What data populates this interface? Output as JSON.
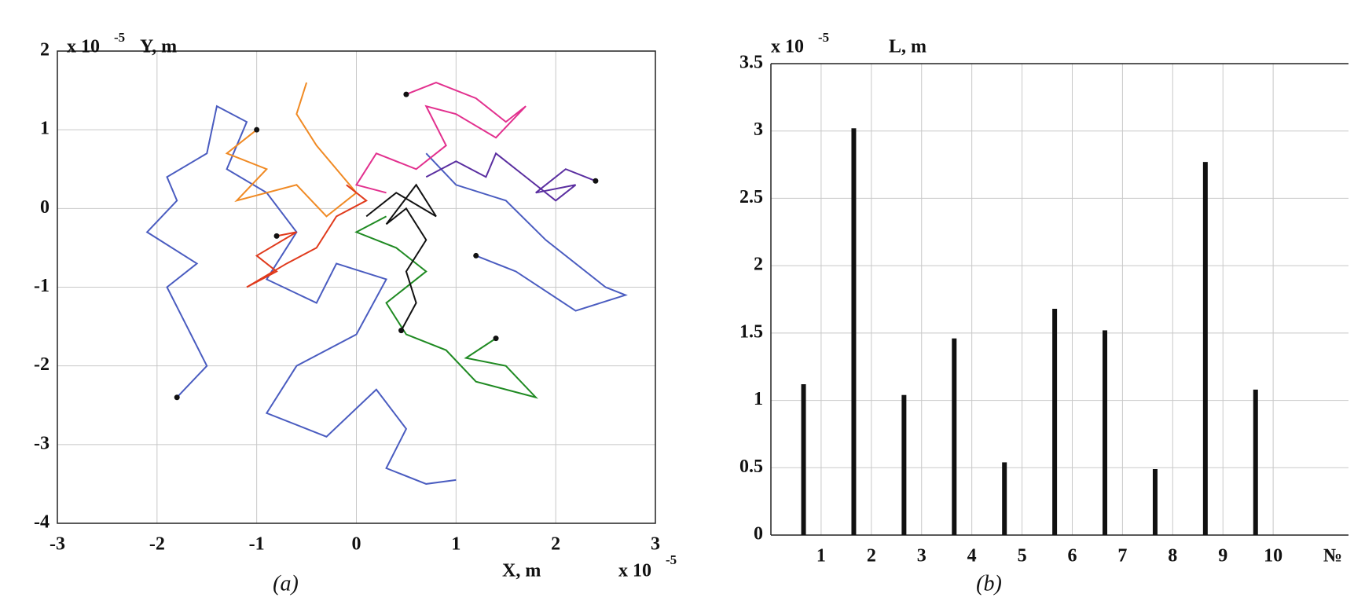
{
  "chart_data": [
    {
      "type": "line",
      "x_label": "X, m",
      "y_label": "Y, m",
      "multiplier": {
        "base": "x 10",
        "exponent": "-5"
      },
      "caption": "(a)",
      "xlim": [
        -3,
        3
      ],
      "ylim": [
        -4,
        2
      ],
      "xticks": [
        -3,
        -2,
        -1,
        0,
        1,
        2,
        3
      ],
      "yticks": [
        -4,
        -3,
        -2,
        -1,
        0,
        1,
        2
      ],
      "grid": true,
      "start_marker_color": "#111",
      "series": [
        {
          "color": "#4a5cc0",
          "x": [
            -1.8,
            -1.5,
            -1.7,
            -1.9,
            -1.6,
            -2.1,
            -1.8,
            -1.9,
            -1.5,
            -1.4,
            -1.1,
            -1.3,
            -0.9,
            -0.6,
            -0.9,
            -0.4,
            -0.2,
            0.3,
            0.0,
            -0.6,
            -0.9,
            -0.3,
            0.2,
            0.5,
            0.3,
            0.7,
            1.0
          ],
          "values": [
            -2.4,
            -2.0,
            -1.5,
            -1.0,
            -0.7,
            -0.3,
            0.1,
            0.4,
            0.7,
            1.3,
            1.1,
            0.5,
            0.2,
            -0.3,
            -0.9,
            -1.2,
            -0.7,
            -0.9,
            -1.6,
            -2.0,
            -2.6,
            -2.9,
            -2.3,
            -2.8,
            -3.3,
            -3.5,
            -3.45
          ]
        },
        {
          "color": "#4a5cc0",
          "x": [
            1.2,
            1.6,
            2.2,
            2.7,
            2.5,
            1.9,
            1.5,
            1.0,
            0.7
          ],
          "values": [
            -0.6,
            -0.8,
            -1.3,
            -1.1,
            -1.0,
            -0.4,
            0.1,
            0.3,
            0.7
          ]
        },
        {
          "color": "#f08a24",
          "x": [
            -1.0,
            -1.3,
            -0.9,
            -1.2,
            -0.6,
            -0.3,
            0.0,
            -0.4,
            -0.6,
            -0.5
          ],
          "values": [
            1.0,
            0.7,
            0.5,
            0.1,
            0.3,
            -0.1,
            0.2,
            0.8,
            1.2,
            1.6
          ]
        },
        {
          "color": "#e03a1c",
          "x": [
            -0.8,
            -0.6,
            -1.0,
            -0.8,
            -1.1,
            -0.7,
            -0.4,
            -0.2,
            0.1,
            -0.1
          ],
          "values": [
            -0.35,
            -0.3,
            -0.6,
            -0.8,
            -1.0,
            -0.7,
            -0.5,
            -0.1,
            0.1,
            0.3
          ]
        },
        {
          "color": "#e2308e",
          "x": [
            0.5,
            0.8,
            1.2,
            1.5,
            1.7,
            1.4,
            1.0,
            0.7,
            0.9,
            0.6,
            0.2,
            0.0,
            0.3
          ],
          "values": [
            1.45,
            1.6,
            1.4,
            1.1,
            1.3,
            0.9,
            1.2,
            1.3,
            0.8,
            0.5,
            0.7,
            0.3,
            0.2
          ]
        },
        {
          "color": "#5a2ea0",
          "x": [
            2.4,
            2.1,
            1.8,
            2.2,
            2.0,
            1.7,
            1.4,
            1.3,
            1.0,
            0.7
          ],
          "values": [
            0.35,
            0.5,
            0.2,
            0.3,
            0.1,
            0.4,
            0.7,
            0.4,
            0.6,
            0.4
          ]
        },
        {
          "color": "#1f8a22",
          "x": [
            1.4,
            1.1,
            1.5,
            1.8,
            1.2,
            0.9,
            0.5,
            0.3,
            0.7,
            0.4,
            0.0,
            0.3
          ],
          "values": [
            -1.65,
            -1.9,
            -2.0,
            -2.4,
            -2.2,
            -1.8,
            -1.6,
            -1.2,
            -0.8,
            -0.5,
            -0.3,
            -0.1
          ]
        },
        {
          "color": "#111111",
          "x": [
            0.45,
            0.6,
            0.5,
            0.7,
            0.5,
            0.3,
            0.6,
            0.8,
            0.4,
            0.1
          ],
          "values": [
            -1.55,
            -1.2,
            -0.8,
            -0.4,
            0.0,
            -0.2,
            0.3,
            -0.1,
            0.2,
            -0.1
          ]
        }
      ]
    },
    {
      "type": "bar",
      "x_label": "№",
      "y_label": "L, m",
      "multiplier": {
        "base": "x 10",
        "exponent": "-5"
      },
      "caption": "(b)",
      "x": [
        0.65,
        1.65,
        2.65,
        3.65,
        4.65,
        5.65,
        6.65,
        7.65,
        8.65,
        9.65
      ],
      "values": [
        1.12,
        3.02,
        1.04,
        1.46,
        0.54,
        1.68,
        1.52,
        0.49,
        2.77,
        1.08
      ],
      "color": "#111111",
      "xlim": [
        0,
        11.5
      ],
      "ylim": [
        0,
        3.5
      ],
      "xticks": [
        1,
        2,
        3,
        4,
        5,
        6,
        7,
        8,
        9,
        10
      ],
      "yticks": [
        0,
        0.5,
        1,
        1.5,
        2,
        2.5,
        3,
        3.5
      ],
      "grid": true
    }
  ]
}
